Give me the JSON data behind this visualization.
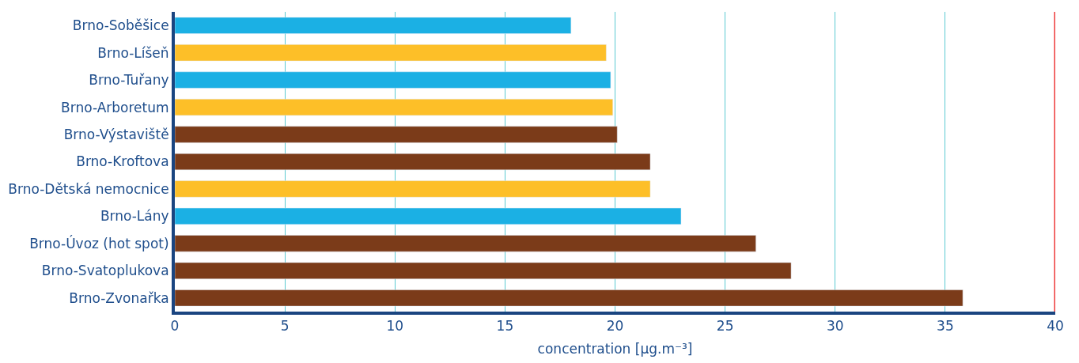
{
  "chart_data": {
    "type": "bar",
    "orientation": "horizontal",
    "xlabel": "concentration [µg.m⁻³]",
    "categories": [
      "Brno-Soběšice",
      "Brno-Líšeň",
      "Brno-Tuřany",
      "Brno-Arboretum",
      "Brno-Výstaviště",
      "Brno-Kroftova",
      "Brno-Dětská nemocnice",
      "Brno-Lány",
      "Brno-Úvoz (hot spot)",
      "Brno-Svatoplukova",
      "Brno-Zvonařka"
    ],
    "values": [
      18.0,
      19.6,
      19.8,
      19.9,
      20.1,
      21.6,
      21.6,
      23.0,
      26.4,
      28.0,
      35.8
    ],
    "colors": [
      "#1bb0e4",
      "#fdbf28",
      "#1bb0e4",
      "#fdbf28",
      "#7b3b19",
      "#7b3b19",
      "#fdbf28",
      "#1bb0e4",
      "#7b3b19",
      "#7b3b19",
      "#7b3b19"
    ],
    "xlim": [
      0,
      40
    ],
    "xticks": [
      0,
      5,
      10,
      15,
      20,
      25,
      30,
      35,
      40
    ],
    "grid": "x",
    "ref_lines": [
      {
        "axis": "x",
        "value": 40,
        "color": "#ee3b3b"
      }
    ]
  }
}
